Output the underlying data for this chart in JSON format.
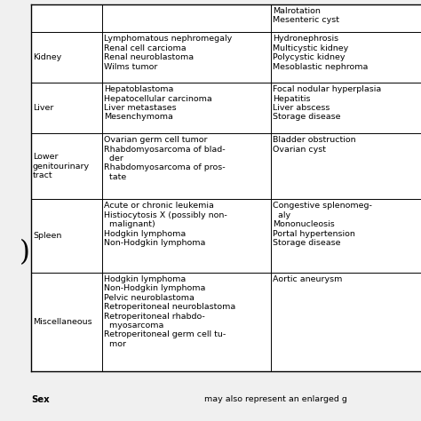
{
  "background_color": "#f0f0f0",
  "table_bg": "#ffffff",
  "rows": [
    {
      "organ": "",
      "malignant": "",
      "benign": "Malrotation\nMesenteric cyst"
    },
    {
      "organ": "Kidney",
      "malignant": "Lymphomatous nephromegaly\nRenal cell carcioma\nRenal neuroblastoma\nWilms tumor",
      "benign": "Hydronephrosis\nMulticystic kidney\nPolycystic kidney\nMesoblastic nephroma"
    },
    {
      "organ": "Liver",
      "malignant": "Hepatoblastoma\nHepatocellular carcinoma\nLiver metastases\nMesenchymoma",
      "benign": "Focal nodular hyperplasia\nHepatitis\nLiver abscess\nStorage disease"
    },
    {
      "organ": "Lower\ngenitourinary\ntract",
      "malignant": "Ovarian germ cell tumor\nRhabdomyosarcoma of blad-\n  der\nRhabdomyosarcoma of pros-\n  tate",
      "benign": "Bladder obstruction\nOvarian cyst"
    },
    {
      "organ": "Spleen",
      "malignant": "Acute or chronic leukemia\nHistiocytosis X (possibly non-\n  malignant)\nHodgkin lymphoma\nNon-Hodgkin lymphoma",
      "benign": "Congestive splenomeg-\n  aly\nMononucleosis\nPortal hypertension\nStorage disease"
    },
    {
      "organ": "Miscellaneous",
      "malignant": "Hodgkin lymphoma\nNon-Hodgkin lymphoma\nPelvic neuroblastoma\nRetroperitoneal neuroblastoma\nRetroperitoneal rhabdo-\n  myosarcoma\nRetroperitoneal germ cell tu-\n  mor",
      "benign": "Aortic aneurysm"
    }
  ],
  "footer_left": "Sex",
  "footer_right": "may also represent an enlarged g",
  "font_size": 6.8,
  "row_proportions": [
    0.055,
    0.1,
    0.1,
    0.13,
    0.145,
    0.195
  ]
}
